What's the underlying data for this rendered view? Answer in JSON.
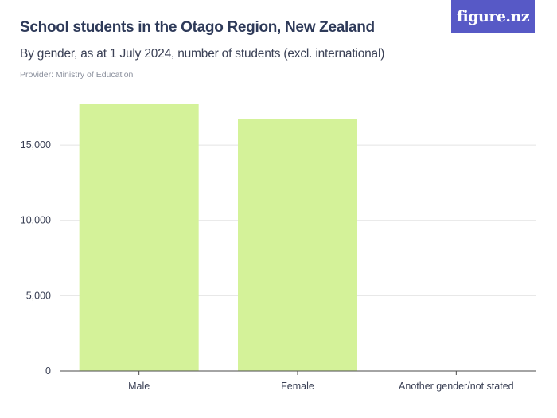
{
  "header": {
    "title": "School students in the Otago Region, New Zealand",
    "subtitle": "By gender, as at 1 July 2024, number of students (excl. international)",
    "provider": "Provider: Ministry of Education",
    "logo_text": "figure.nz"
  },
  "colors": {
    "bar": "#d4f299",
    "grid": "#e4e4e4",
    "axis": "#4a4a4a",
    "logo_bg": "#5759c6"
  },
  "chart_data": {
    "type": "bar",
    "categories": [
      "Male",
      "Female",
      "Another gender/not stated"
    ],
    "values": [
      17700,
      16700,
      0
    ],
    "ylim": [
      0,
      17700
    ],
    "yticks": [
      0,
      5000,
      10000,
      15000
    ],
    "ytick_labels": [
      "0",
      "5,000",
      "10,000",
      "15,000"
    ],
    "grid": true,
    "legend": "none"
  }
}
